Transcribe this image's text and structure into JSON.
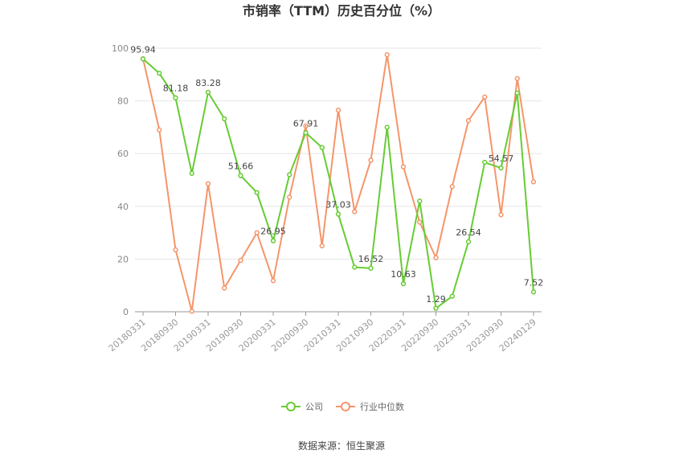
{
  "chart_data": {
    "type": "line",
    "title": "市销率（TTM）历史百分位（%）",
    "source": "数据来源：恒生聚源",
    "ylim": [
      0,
      100
    ],
    "yticks": [
      0,
      20,
      40,
      60,
      80,
      100
    ],
    "grid": true,
    "legend_position": "bottom",
    "x": [
      "20180331",
      "20180630",
      "20180930",
      "20181231",
      "20190331",
      "20190630",
      "20190930",
      "20191231",
      "20200331",
      "20200630",
      "20200930",
      "20201231",
      "20210331",
      "20210630",
      "20210930",
      "20211231",
      "20220331",
      "20220630",
      "20220930",
      "20221231",
      "20230331",
      "20230630",
      "20230930",
      "20231231",
      "20240129"
    ],
    "xticks": [
      "20180331",
      "20180930",
      "20190331",
      "20190930",
      "20200331",
      "20200930",
      "20210331",
      "20210930",
      "20220331",
      "20220930",
      "20230331",
      "20230930",
      "20240129"
    ],
    "series": [
      {
        "name": "公司",
        "color": "#66cc33",
        "values": [
          95.94,
          90.5,
          81.18,
          52.5,
          83.28,
          73.2,
          51.66,
          45.2,
          26.95,
          52.0,
          67.91,
          62.3,
          37.03,
          16.9,
          16.52,
          70.0,
          10.63,
          42.0,
          1.29,
          5.9,
          26.54,
          56.7,
          54.57,
          83.0,
          7.52
        ],
        "labels": {
          "0": "95.94",
          "2": "81.18",
          "4": "83.28",
          "6": "51.66",
          "8": "26.95",
          "10": "67.91",
          "12": "37.03",
          "14": "16.52",
          "16": "10.63",
          "18": "1.29",
          "20": "26.54",
          "22": "54.57",
          "24": "7.52"
        }
      },
      {
        "name": "行业中位数",
        "color": "#f5956a",
        "values": [
          96.0,
          69.0,
          23.5,
          0.2,
          48.6,
          9.0,
          19.5,
          30.0,
          11.8,
          43.5,
          70.5,
          25.0,
          76.5,
          38.0,
          57.5,
          97.5,
          55.0,
          34.0,
          20.5,
          47.5,
          72.5,
          81.5,
          36.8,
          88.5,
          49.3
        ]
      }
    ]
  }
}
